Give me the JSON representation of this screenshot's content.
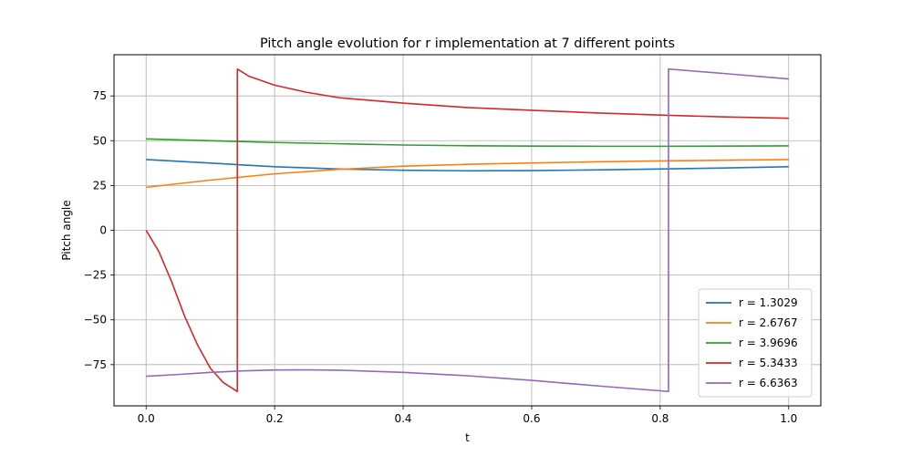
{
  "chart_data": {
    "type": "line",
    "title": "Pitch angle evolution for r implementation at 7 different points",
    "xlabel": "t",
    "ylabel": "Pitch angle",
    "xlim": [
      -0.05,
      1.05
    ],
    "ylim": [
      -98,
      98
    ],
    "xticks": [
      0.0,
      0.2,
      0.4,
      0.6,
      0.8,
      1.0
    ],
    "xtick_labels": [
      "0.0",
      "0.2",
      "0.4",
      "0.6",
      "0.8",
      "1.0"
    ],
    "yticks": [
      -75,
      -50,
      -25,
      0,
      25,
      50,
      75
    ],
    "ytick_labels": [
      "−75",
      "−50",
      "−25",
      "0",
      "25",
      "50",
      "75"
    ],
    "grid": true,
    "legend_position": "lower-right",
    "series": [
      {
        "name": "r = 1.3029",
        "color": "#1f77b4",
        "x": [
          0.0,
          0.1,
          0.2,
          0.3,
          0.4,
          0.5,
          0.6,
          0.7,
          0.8,
          0.9,
          1.0
        ],
        "y": [
          39.5,
          37.5,
          35.5,
          34.2,
          33.5,
          33.2,
          33.3,
          33.7,
          34.2,
          34.8,
          35.5
        ]
      },
      {
        "name": "r = 2.6767",
        "color": "#ff7f0e",
        "x": [
          0.0,
          0.1,
          0.2,
          0.3,
          0.4,
          0.5,
          0.6,
          0.7,
          0.8,
          0.9,
          1.0
        ],
        "y": [
          24.0,
          28.0,
          31.5,
          34.0,
          35.8,
          36.8,
          37.6,
          38.2,
          38.7,
          39.1,
          39.5
        ]
      },
      {
        "name": "r = 3.9696",
        "color": "#2ca02c",
        "x": [
          0.0,
          0.1,
          0.2,
          0.3,
          0.4,
          0.5,
          0.6,
          0.7,
          0.8,
          0.9,
          1.0
        ],
        "y": [
          51.0,
          50.0,
          49.0,
          48.3,
          47.6,
          47.2,
          47.0,
          46.9,
          46.9,
          47.0,
          47.1
        ]
      },
      {
        "name": "r = 5.3433",
        "color": "#d62728",
        "x": [
          0.0,
          0.02,
          0.04,
          0.06,
          0.08,
          0.1,
          0.12,
          0.142,
          0.142,
          0.16,
          0.2,
          0.25,
          0.3,
          0.4,
          0.5,
          0.6,
          0.7,
          0.8,
          0.9,
          1.0
        ],
        "y": [
          0,
          -12,
          -29,
          -48,
          -64,
          -77,
          -85,
          -90,
          90,
          86,
          81,
          77,
          74,
          71,
          68.5,
          67,
          65.5,
          64.3,
          63.3,
          62.5
        ]
      },
      {
        "name": "r = 6.6363",
        "color": "#9467bd",
        "x": [
          0.0,
          0.05,
          0.1,
          0.15,
          0.2,
          0.25,
          0.3,
          0.4,
          0.5,
          0.6,
          0.7,
          0.8,
          0.813,
          0.813,
          0.9,
          1.0
        ],
        "y": [
          -81.5,
          -80.5,
          -79.3,
          -78.5,
          -78.0,
          -77.9,
          -78.1,
          -79.3,
          -81.2,
          -83.8,
          -86.8,
          -89.6,
          -90,
          90,
          87.5,
          84.5
        ]
      }
    ]
  }
}
